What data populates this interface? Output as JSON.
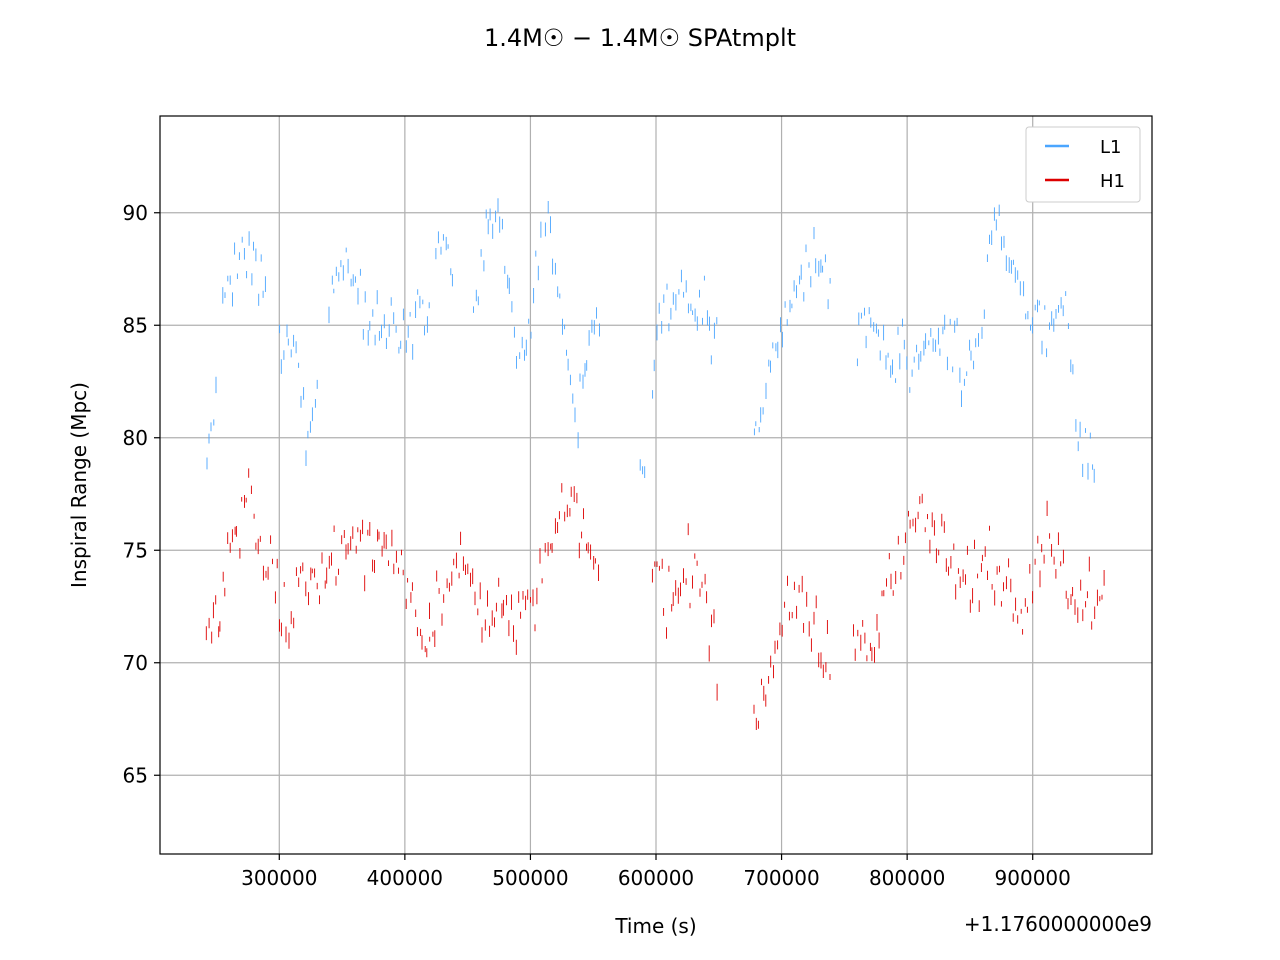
{
  "chart_data": {
    "type": "scatter",
    "title": "1.4M☉ − 1.4M☉ SPAtmplt",
    "xlabel": "Time (s)",
    "ylabel": "Inspiral Range (Mpc)",
    "x_offset_label": "+1.1760000000e9",
    "xlim": [
      205000,
      995000
    ],
    "ylim": [
      61.5,
      94.3
    ],
    "x_ticks": [
      300000,
      400000,
      500000,
      600000,
      700000,
      800000,
      900000
    ],
    "x_tick_labels": [
      "300000",
      "400000",
      "500000",
      "600000",
      "700000",
      "800000",
      "900000"
    ],
    "y_ticks": [
      65,
      70,
      75,
      80,
      85,
      90
    ],
    "y_tick_labels": [
      "65",
      "70",
      "75",
      "80",
      "85",
      "90"
    ],
    "grid": true,
    "legend_position": "upper-right",
    "series": [
      {
        "name": "L1",
        "color": "#4ba6ff",
        "segments": [
          [
            242000,
            250000
          ],
          [
            255000,
            290000
          ],
          [
            300000,
            332000
          ],
          [
            340000,
            420000
          ],
          [
            425000,
            440000
          ],
          [
            455000,
            510000
          ],
          [
            512000,
            530000
          ],
          [
            530000,
            555000
          ],
          [
            587000,
            592000
          ],
          [
            597000,
            650000
          ],
          [
            678000,
            740000
          ],
          [
            760000,
            858000
          ],
          [
            860000,
            950000
          ]
        ],
        "profile": [
          [
            240000,
            78
          ],
          [
            250000,
            83
          ],
          [
            260000,
            87.5
          ],
          [
            275000,
            88
          ],
          [
            290000,
            87
          ],
          [
            300000,
            84
          ],
          [
            312000,
            84
          ],
          [
            325000,
            80
          ],
          [
            335000,
            86
          ],
          [
            350000,
            88
          ],
          [
            365000,
            86.5
          ],
          [
            380000,
            85
          ],
          [
            395000,
            85
          ],
          [
            410000,
            86
          ],
          [
            420000,
            87
          ],
          [
            430000,
            89
          ],
          [
            440000,
            86.5
          ],
          [
            450000,
            84
          ],
          [
            465000,
            89
          ],
          [
            475000,
            90.5
          ],
          [
            485000,
            86
          ],
          [
            495000,
            83
          ],
          [
            505000,
            88
          ],
          [
            515000,
            89.5
          ],
          [
            525000,
            85
          ],
          [
            535000,
            81
          ],
          [
            545000,
            84
          ],
          [
            555000,
            86
          ],
          [
            590000,
            78
          ],
          [
            600000,
            85
          ],
          [
            612000,
            86.5
          ],
          [
            625000,
            86
          ],
          [
            640000,
            86
          ],
          [
            650000,
            84
          ],
          [
            680000,
            80
          ],
          [
            692000,
            84
          ],
          [
            705000,
            86
          ],
          [
            720000,
            88
          ],
          [
            735000,
            87
          ],
          [
            760000,
            84
          ],
          [
            772000,
            86
          ],
          [
            785000,
            84
          ],
          [
            800000,
            83.5
          ],
          [
            815000,
            84
          ],
          [
            830000,
            85
          ],
          [
            845000,
            83
          ],
          [
            860000,
            85
          ],
          [
            868000,
            90
          ],
          [
            880000,
            88
          ],
          [
            895000,
            86
          ],
          [
            910000,
            85
          ],
          [
            925000,
            86
          ],
          [
            935000,
            81
          ],
          [
            950000,
            79
          ]
        ],
        "noise": 1.7
      },
      {
        "name": "H1",
        "color": "#dd0000",
        "segments": [
          [
            242000,
            252000
          ],
          [
            253000,
            300000
          ],
          [
            300000,
            420000
          ],
          [
            420000,
            510000
          ],
          [
            512000,
            555000
          ],
          [
            597000,
            650000
          ],
          [
            678000,
            740000
          ],
          [
            757000,
            860000
          ],
          [
            860000,
            958000
          ]
        ],
        "profile": [
          [
            240000,
            71.5
          ],
          [
            252000,
            73
          ],
          [
            265000,
            76.5
          ],
          [
            275000,
            77
          ],
          [
            285000,
            75.5
          ],
          [
            295000,
            74
          ],
          [
            305000,
            72
          ],
          [
            320000,
            73.5
          ],
          [
            335000,
            74.5
          ],
          [
            350000,
            75
          ],
          [
            365000,
            75.5
          ],
          [
            380000,
            75.5
          ],
          [
            395000,
            75
          ],
          [
            410000,
            72
          ],
          [
            420000,
            71.5
          ],
          [
            430000,
            74
          ],
          [
            445000,
            74.5
          ],
          [
            455000,
            73.5
          ],
          [
            465000,
            72.5
          ],
          [
            475000,
            74
          ],
          [
            485000,
            72.5
          ],
          [
            495000,
            72
          ],
          [
            505000,
            73.5
          ],
          [
            520000,
            76
          ],
          [
            530000,
            77
          ],
          [
            540000,
            76.5
          ],
          [
            550000,
            75
          ],
          [
            600000,
            74
          ],
          [
            612000,
            73
          ],
          [
            625000,
            74.5
          ],
          [
            640000,
            73.5
          ],
          [
            650000,
            69
          ],
          [
            680000,
            68
          ],
          [
            692000,
            70.5
          ],
          [
            705000,
            73
          ],
          [
            720000,
            72.5
          ],
          [
            735000,
            70.5
          ],
          [
            760000,
            71
          ],
          [
            770000,
            70.5
          ],
          [
            780000,
            73
          ],
          [
            792000,
            75
          ],
          [
            805000,
            76.5
          ],
          [
            820000,
            76.5
          ],
          [
            835000,
            74.5
          ],
          [
            850000,
            73.5
          ],
          [
            865000,
            74.5
          ],
          [
            875000,
            74
          ],
          [
            890000,
            72.5
          ],
          [
            905000,
            75.5
          ],
          [
            915000,
            76
          ],
          [
            925000,
            73.5
          ],
          [
            940000,
            73
          ],
          [
            950000,
            72.5
          ],
          [
            958000,
            73.5
          ]
        ],
        "noise": 1.9
      }
    ]
  }
}
